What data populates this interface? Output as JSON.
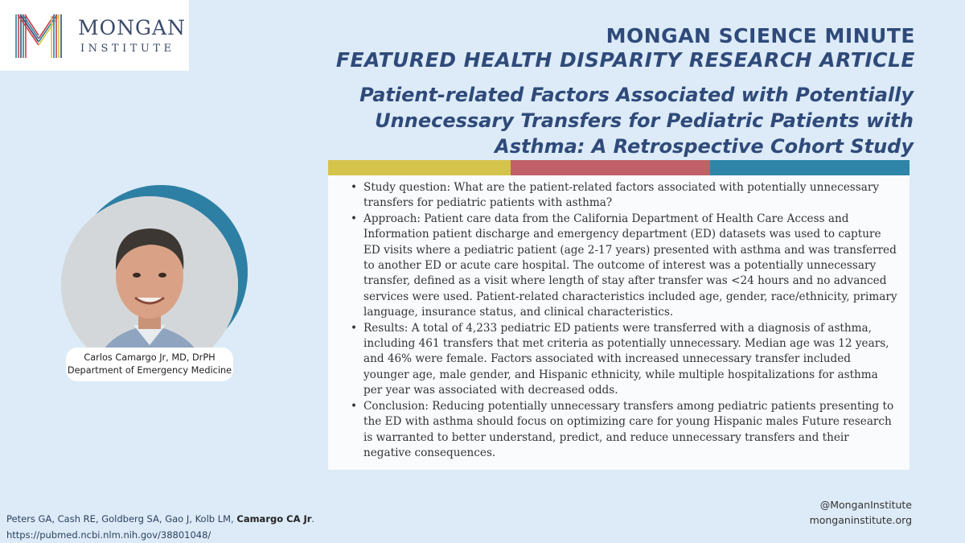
{
  "logo": {
    "name": "MONGAN",
    "subtitle": "INSTITUTE",
    "colors": [
      "#c7414c",
      "#2e7fa4",
      "#d8c64a",
      "#3b4a6b"
    ]
  },
  "header": {
    "line1": "MONGAN SCIENCE MINUTE",
    "line2": "FEATURED HEALTH DISPARITY RESEARCH ARTICLE"
  },
  "article": {
    "title_lines": [
      "Patient-related Factors Associated with Potentially",
      "Unnecessary Transfers for Pediatric Patients with",
      "Asthma: A Retrospective Cohort Study"
    ]
  },
  "color_bar": [
    "#d5c44b",
    "#c0616a",
    "#2f85a8"
  ],
  "bullets": [
    "Study question: What are the patient-related factors associated with potentially unnecessary transfers for pediatric patients with asthma?",
    "Approach: Patient care data from the California Department of Health Care Access and Information patient discharge and emergency department (ED) datasets was used to capture ED visits where a pediatric patient (age 2-17 years) presented with asthma and was transferred to another ED or acute care hospital. The outcome of interest was a potentially unnecessary transfer, defined as a visit where length of stay after transfer was <24 hours and no advanced services were used. Patient-related characteristics included age, gender, race/ethnicity, primary language, insurance status, and clinical characteristics.",
    "Results: A total of 4,233 pediatric ED patients were transferred with a diagnosis of asthma, including 461 transfers that met criteria as potentially unnecessary. Median age was 12 years, and 46% were female. Factors associated with increased unnecessary transfer included younger age, male gender, and Hispanic ethnicity, while multiple hospitalizations for asthma per year was associated with decreased odds.",
    "Conclusion: Reducing potentially unnecessary transfers among pediatric patients presenting to the ED with asthma should focus on optimizing care for young Hispanic males Future research is warranted to better understand, predict, and reduce unnecessary transfers and their negative consequences."
  ],
  "author": {
    "name": "Carlos Camargo Jr, MD, DrPH",
    "department": "Department of Emergency Medicine"
  },
  "citation": {
    "authors": "Peters GA, Cash RE, Goldberg SA, Gao J, Kolb LM, ",
    "highlight": "Camargo CA Jr",
    "end": ".",
    "url": "https://pubmed.ncbi.nlm.nih.gov/38801048/"
  },
  "social": {
    "handle": "@MonganInstitute",
    "website": "monganinstitute.org"
  }
}
